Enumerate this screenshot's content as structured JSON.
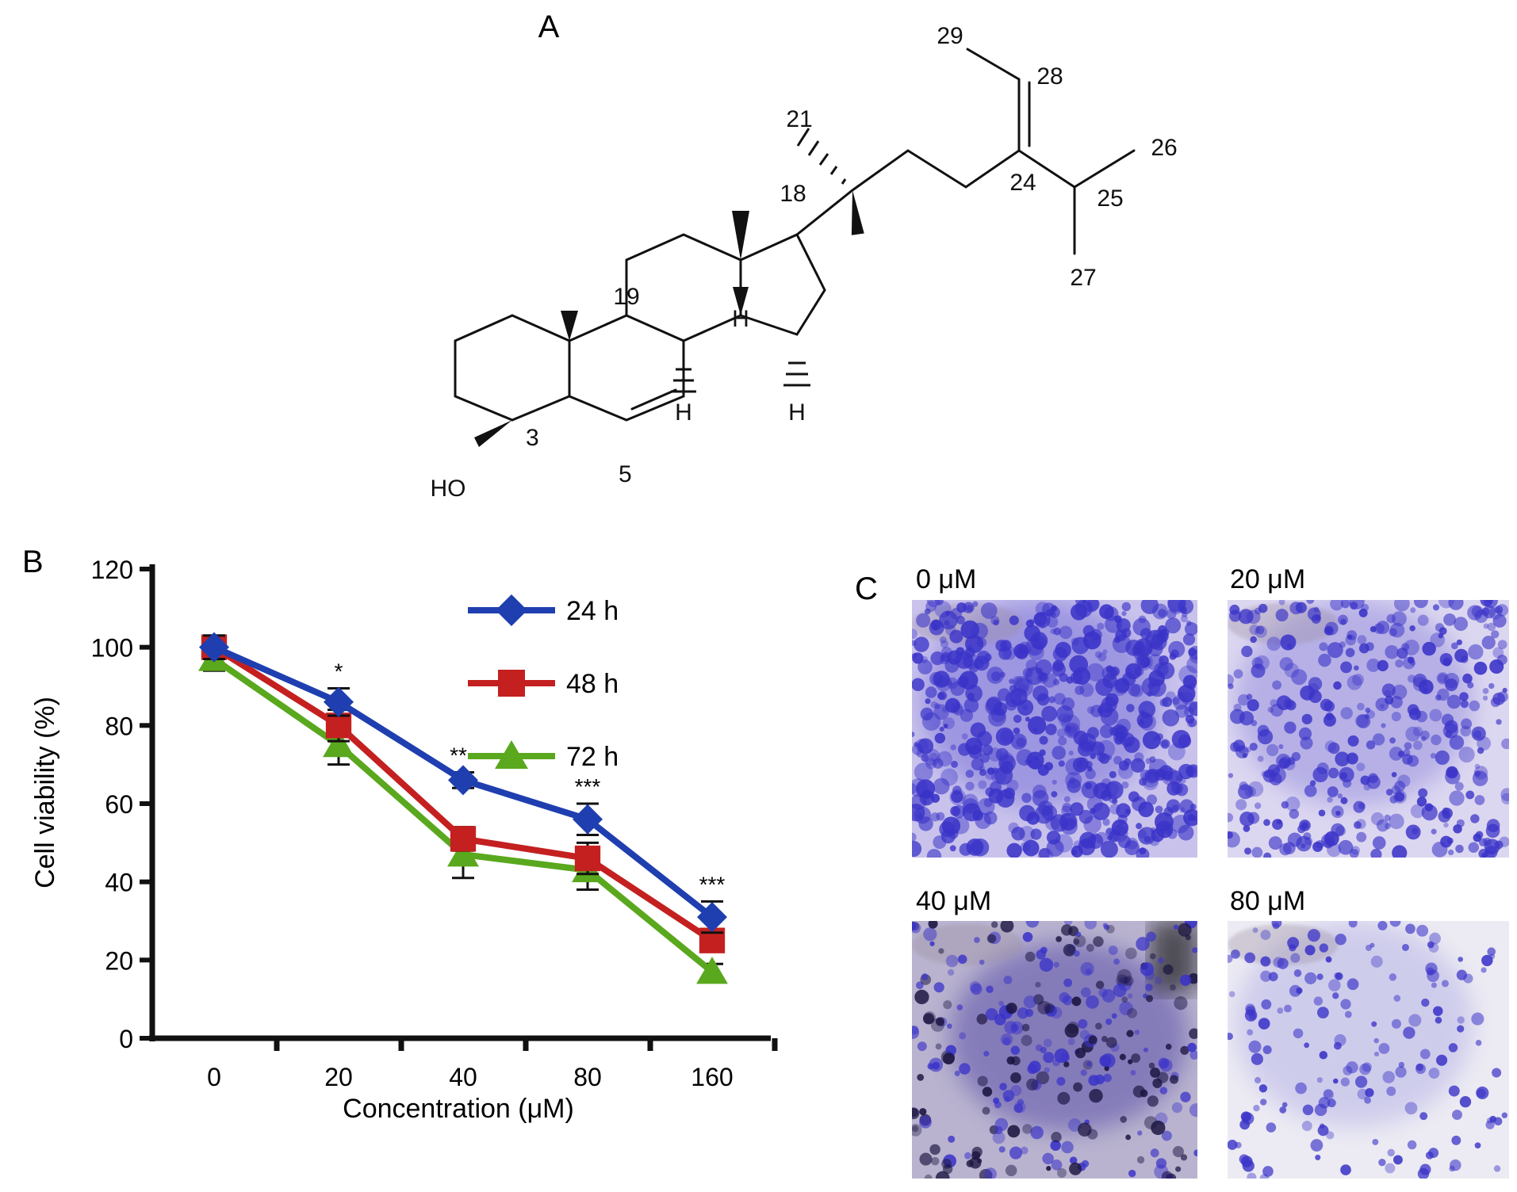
{
  "panels": {
    "a": {
      "letter": "A"
    },
    "b": {
      "letter": "B"
    },
    "c": {
      "letter": "C"
    }
  },
  "molecule": {
    "atoms": {
      "n3": "3",
      "n5": "5",
      "n18": "18",
      "n19": "19",
      "n21": "21",
      "n24": "24",
      "n25": "25",
      "n26": "26",
      "n27": "27",
      "n28": "28",
      "n29": "29",
      "ho": "HO",
      "h8": "H",
      "h9": "H",
      "h14": "H"
    }
  },
  "chart_data": {
    "type": "line",
    "xlabel": "Concentration (μM)",
    "ylabel": "Cell viability (%)",
    "categories": [
      "0",
      "20",
      "40",
      "80",
      "160"
    ],
    "ylim": [
      0,
      120
    ],
    "yticks": [
      0,
      20,
      40,
      60,
      80,
      100,
      120
    ],
    "legend_position": "top-right",
    "series": [
      {
        "name": "24 h",
        "color": "#1f3fb0",
        "marker": "diamond",
        "values": [
          100,
          86,
          66,
          56,
          31
        ],
        "errors": [
          3,
          3.5,
          2,
          4,
          4
        ]
      },
      {
        "name": "48 h",
        "color": "#c42020",
        "marker": "square",
        "values": [
          100,
          80,
          51,
          46,
          25
        ],
        "errors": [
          3,
          4,
          3,
          4,
          2
        ]
      },
      {
        "name": "72 h",
        "color": "#5aa81e",
        "marker": "triangle",
        "values": [
          97,
          75,
          47,
          43,
          17
        ],
        "errors": [
          3,
          5,
          6,
          5,
          2
        ]
      }
    ],
    "annotations": [
      "*",
      "**",
      "***",
      "***"
    ]
  },
  "micrographs": [
    {
      "label": "0 μM",
      "density": 1.0
    },
    {
      "label": "20 μM",
      "density": 0.62
    },
    {
      "label": "40 μM",
      "density": 0.45
    },
    {
      "label": "80 μM",
      "density": 0.22
    }
  ],
  "colors": {
    "stain": "#3a33c8",
    "ink": "#111111"
  }
}
